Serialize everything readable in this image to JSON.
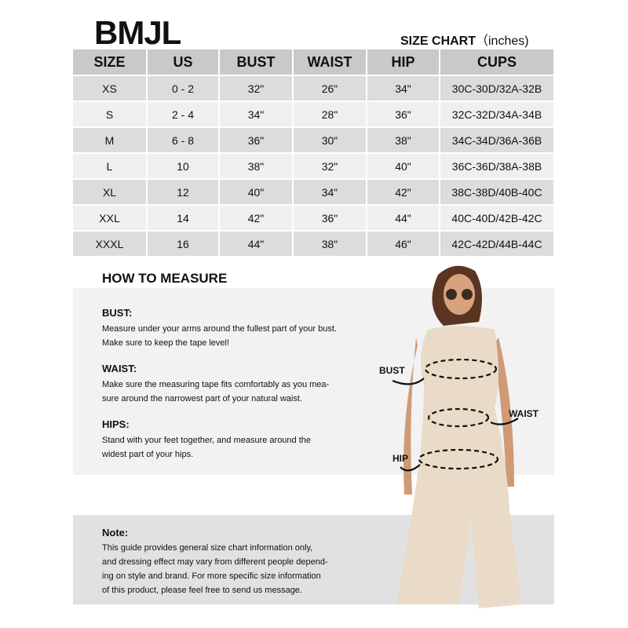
{
  "brand": "BMJL",
  "chart_title": {
    "main": "SIZE CHART",
    "unit": "（inches)"
  },
  "table": {
    "headers": [
      "SIZE",
      "US",
      "BUST",
      "WAIST",
      "HIP",
      "CUPS"
    ],
    "rows": [
      [
        "XS",
        "0 - 2",
        "32\"",
        "26\"",
        "34\"",
        "30C-30D/32A-32B"
      ],
      [
        "S",
        "2 - 4",
        "34\"",
        "28\"",
        "36\"",
        "32C-32D/34A-34B"
      ],
      [
        "M",
        "6 - 8",
        "36\"",
        "30\"",
        "38\"",
        "34C-34D/36A-36B"
      ],
      [
        "L",
        "10",
        "38\"",
        "32\"",
        "40\"",
        "36C-36D/38A-38B"
      ],
      [
        "XL",
        "12",
        "40\"",
        "34\"",
        "42\"",
        "38C-38D/40B-40C"
      ],
      [
        "XXL",
        "14",
        "42\"",
        "36\"",
        "44\"",
        "40C-40D/42B-42C"
      ],
      [
        "XXXL",
        "16",
        "44\"",
        "38\"",
        "46\"",
        "42C-42D/44B-44C"
      ]
    ]
  },
  "how_to_measure": {
    "title": "HOW TO MEASURE",
    "sections": [
      {
        "heading": "BUST:",
        "lines": [
          "Measure under your arms around the fullest part of your bust.",
          "Make sure to keep the tape level!"
        ]
      },
      {
        "heading": "WAIST:",
        "lines": [
          "Make sure the measuring tape fits comfortably as you mea-",
          "sure around the narrowest part of your natural waist."
        ]
      },
      {
        "heading": "HIPS:",
        "lines": [
          "Stand with your feet together, and measure around the",
          "widest part of your hips."
        ]
      }
    ]
  },
  "figure_labels": {
    "bust": "BUST",
    "waist": "WAIST",
    "hip": "HIP"
  },
  "note": {
    "heading": "Note:",
    "lines": [
      "This guide provides general size chart information only,",
      "and dressing effect may vary from different people depend-",
      "ing on style and brand. For more specific size information",
      "of this product, please feel free to send us message."
    ]
  }
}
